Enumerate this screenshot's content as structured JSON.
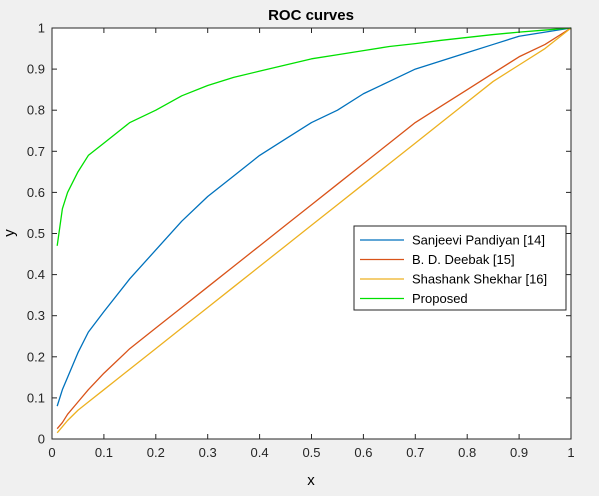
{
  "chart_data": {
    "type": "line",
    "title": "ROC curves",
    "xlabel": "x",
    "ylabel": "y",
    "xlim": [
      0,
      1
    ],
    "ylim": [
      0,
      1
    ],
    "xticks": [
      "0",
      "0.1",
      "0.2",
      "0.3",
      "0.4",
      "0.5",
      "0.6",
      "0.7",
      "0.8",
      "0.9",
      "1"
    ],
    "yticks": [
      "0",
      "0.1",
      "0.2",
      "0.3",
      "0.4",
      "0.5",
      "0.6",
      "0.7",
      "0.8",
      "0.9",
      "1"
    ],
    "grid": false,
    "legend_position": "right",
    "x": [
      0.01,
      0.02,
      0.03,
      0.05,
      0.07,
      0.1,
      0.15,
      0.2,
      0.25,
      0.3,
      0.35,
      0.4,
      0.45,
      0.5,
      0.55,
      0.6,
      0.65,
      0.7,
      0.75,
      0.8,
      0.85,
      0.9,
      0.95,
      1.0
    ],
    "series": [
      {
        "name": "Sanjeevi Pandiyan [14]",
        "color": "#0072bd",
        "values": [
          0.08,
          0.12,
          0.15,
          0.21,
          0.26,
          0.31,
          0.39,
          0.46,
          0.53,
          0.59,
          0.64,
          0.69,
          0.73,
          0.77,
          0.8,
          0.84,
          0.87,
          0.9,
          0.92,
          0.94,
          0.96,
          0.98,
          0.99,
          1.0
        ]
      },
      {
        "name": "B. D. Deebak [15]",
        "color": "#d95319",
        "values": [
          0.025,
          0.04,
          0.06,
          0.09,
          0.12,
          0.16,
          0.22,
          0.27,
          0.32,
          0.37,
          0.42,
          0.47,
          0.52,
          0.57,
          0.62,
          0.67,
          0.72,
          0.77,
          0.81,
          0.85,
          0.89,
          0.93,
          0.96,
          1.0
        ]
      },
      {
        "name": "Shashank Shekhar [16]",
        "color": "#edb120",
        "values": [
          0.015,
          0.03,
          0.045,
          0.07,
          0.09,
          0.12,
          0.17,
          0.22,
          0.27,
          0.32,
          0.37,
          0.42,
          0.47,
          0.52,
          0.57,
          0.62,
          0.67,
          0.72,
          0.77,
          0.82,
          0.87,
          0.91,
          0.95,
          1.0
        ]
      },
      {
        "name": "Proposed",
        "color": "#00e000",
        "values": [
          0.47,
          0.56,
          0.6,
          0.65,
          0.69,
          0.72,
          0.77,
          0.8,
          0.835,
          0.86,
          0.88,
          0.895,
          0.91,
          0.925,
          0.935,
          0.945,
          0.955,
          0.962,
          0.97,
          0.977,
          0.984,
          0.99,
          0.995,
          1.0
        ]
      }
    ]
  }
}
